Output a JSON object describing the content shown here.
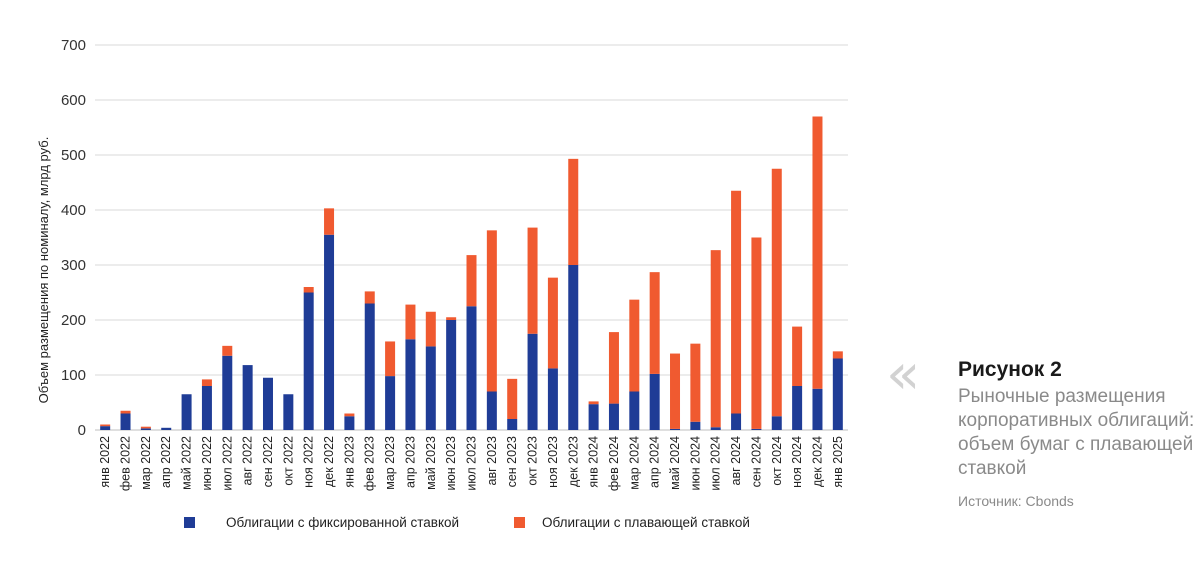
{
  "chart_data": {
    "type": "bar",
    "stacked": true,
    "categories": [
      "янв 2022",
      "фев 2022",
      "мар 2022",
      "апр 2022",
      "май 2022",
      "июн 2022",
      "июл 2022",
      "авг 2022",
      "сен 2022",
      "окт 2022",
      "ноя 2022",
      "дек 2022",
      "янв 2023",
      "фев 2023",
      "мар 2023",
      "апр 2023",
      "май 2023",
      "июн 2023",
      "июл 2023",
      "авг 2023",
      "сен 2023",
      "окт 2023",
      "ноя 2023",
      "дек 2023",
      "янв 2024",
      "фев 2024",
      "мар 2024",
      "апр 2024",
      "май 2024",
      "июн 2024",
      "июл 2024",
      "авг 2024",
      "сен 2024",
      "окт 2024",
      "ноя 2024",
      "дек 2024",
      "янв 2025"
    ],
    "series": [
      {
        "name": "Облигации с фиксированной ставкой",
        "color": "#1f3c96",
        "values": [
          7,
          30,
          3,
          4,
          65,
          80,
          135,
          118,
          95,
          65,
          250,
          355,
          25,
          230,
          98,
          165,
          152,
          200,
          225,
          70,
          20,
          175,
          112,
          300,
          47,
          48,
          70,
          102,
          2,
          15,
          5,
          30,
          2,
          25,
          80,
          75,
          130
        ]
      },
      {
        "name": "Облигации с плавающей ставкой",
        "color": "#f05a30",
        "values": [
          3,
          5,
          3,
          0,
          0,
          12,
          18,
          0,
          0,
          0,
          10,
          48,
          5,
          22,
          63,
          63,
          63,
          5,
          93,
          293,
          73,
          193,
          165,
          193,
          5,
          130,
          167,
          185,
          137,
          142,
          322,
          405,
          348,
          450,
          108,
          495,
          13
        ]
      }
    ],
    "title": "",
    "xlabel": "",
    "ylabel": "Объем размещения по номиналу, млрд руб.",
    "ylim": [
      0,
      700
    ],
    "yticks": [
      0,
      100,
      200,
      300,
      400,
      500,
      600,
      700
    ],
    "grid": true,
    "legend": "bottom"
  },
  "caption": {
    "figure_number": "Рисунок 2",
    "title": "Рыночные размещения корпоративных облигаций: объем бумаг с плавающей ставкой",
    "source": "Источник: Cbonds",
    "chevron": "«",
    "accent_gray": "#d2d2d2"
  }
}
